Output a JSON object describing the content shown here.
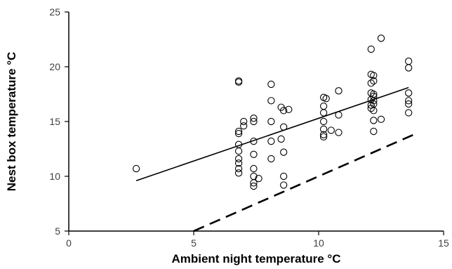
{
  "chart_data": {
    "type": "scatter",
    "xlabel": "Ambient night temperature °C",
    "ylabel": "Nest box temperature °C",
    "xlim": [
      0,
      15
    ],
    "ylim": [
      5,
      25
    ],
    "xticks": [
      "0",
      "5",
      "10",
      "15"
    ],
    "yticks": [
      "5",
      "10",
      "15",
      "20",
      "25"
    ],
    "grid": false,
    "points": [
      [
        2.7,
        10.7
      ],
      [
        6.8,
        18.7
      ],
      [
        6.8,
        18.6
      ],
      [
        6.8,
        14.1
      ],
      [
        6.8,
        13.9
      ],
      [
        6.8,
        12.9
      ],
      [
        6.8,
        12.3
      ],
      [
        6.8,
        11.6
      ],
      [
        6.8,
        11.2
      ],
      [
        6.8,
        10.7
      ],
      [
        6.8,
        10.3
      ],
      [
        7.0,
        15.0
      ],
      [
        7.0,
        14.6
      ],
      [
        7.4,
        15.3
      ],
      [
        7.4,
        15.0
      ],
      [
        7.4,
        13.2
      ],
      [
        7.4,
        12.0
      ],
      [
        7.4,
        10.7
      ],
      [
        7.4,
        10.0
      ],
      [
        7.4,
        9.4
      ],
      [
        7.4,
        9.1
      ],
      [
        7.6,
        9.8
      ],
      [
        8.1,
        18.4
      ],
      [
        8.1,
        16.9
      ],
      [
        8.1,
        15.0
      ],
      [
        8.1,
        13.2
      ],
      [
        8.1,
        11.6
      ],
      [
        8.5,
        16.3
      ],
      [
        8.5,
        13.4
      ],
      [
        8.6,
        16.0
      ],
      [
        8.6,
        14.5
      ],
      [
        8.6,
        12.2
      ],
      [
        8.6,
        10.0
      ],
      [
        8.6,
        9.2
      ],
      [
        8.8,
        16.1
      ],
      [
        10.2,
        17.2
      ],
      [
        10.2,
        16.4
      ],
      [
        10.2,
        15.8
      ],
      [
        10.2,
        15.0
      ],
      [
        10.2,
        14.3
      ],
      [
        10.2,
        13.8
      ],
      [
        10.2,
        13.6
      ],
      [
        10.3,
        17.1
      ],
      [
        10.5,
        14.2
      ],
      [
        10.8,
        17.8
      ],
      [
        10.8,
        15.6
      ],
      [
        10.8,
        14.0
      ],
      [
        12.1,
        21.6
      ],
      [
        12.1,
        19.3
      ],
      [
        12.1,
        18.5
      ],
      [
        12.1,
        17.6
      ],
      [
        12.1,
        17.0
      ],
      [
        12.1,
        16.5
      ],
      [
        12.1,
        16.2
      ],
      [
        12.2,
        19.2
      ],
      [
        12.2,
        18.7
      ],
      [
        12.2,
        17.5
      ],
      [
        12.2,
        17.3
      ],
      [
        12.2,
        16.9
      ],
      [
        12.2,
        16.6
      ],
      [
        12.2,
        16.0
      ],
      [
        12.2,
        15.1
      ],
      [
        12.2,
        14.1
      ],
      [
        12.5,
        22.6
      ],
      [
        12.5,
        15.2
      ],
      [
        13.6,
        20.5
      ],
      [
        13.6,
        19.9
      ],
      [
        13.6,
        17.6
      ],
      [
        13.6,
        16.9
      ],
      [
        13.6,
        16.6
      ],
      [
        13.6,
        15.8
      ]
    ],
    "lines": [
      {
        "style": "solid",
        "from": [
          2.7,
          9.6
        ],
        "to": [
          13.6,
          18.1
        ]
      },
      {
        "style": "dashed",
        "from": [
          5.0,
          5.0
        ],
        "to": [
          14.0,
          14.0
        ]
      }
    ]
  }
}
